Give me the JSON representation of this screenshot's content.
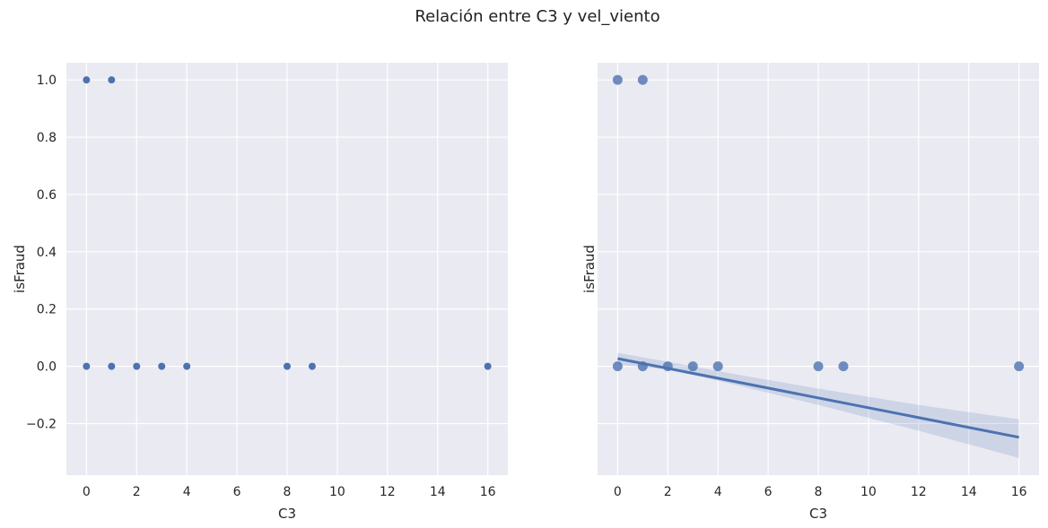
{
  "figure": {
    "title": "Relación entre C3 y vel_viento"
  },
  "colors": {
    "plot_bg": "#EAEAF2",
    "grid": "#FFFFFF",
    "point": "#4C72B0",
    "band": "#4C72B0"
  },
  "chart_data": [
    {
      "type": "scatter",
      "xlabel": "C3",
      "ylabel": "isFraud",
      "xlim": [
        -0.8,
        16.8
      ],
      "ylim": [
        -0.38,
        1.06
      ],
      "xticks": [
        0,
        2,
        4,
        6,
        8,
        10,
        12,
        14,
        16
      ],
      "yticks": [
        -0.2,
        0.0,
        0.2,
        0.4,
        0.6,
        0.8,
        1.0
      ],
      "ytick_labels": [
        "−0.2",
        "0.0",
        "0.2",
        "0.4",
        "0.6",
        "0.8",
        "1.0"
      ],
      "grid": true,
      "points": [
        {
          "x": 0,
          "y": 1
        },
        {
          "x": 1,
          "y": 1
        },
        {
          "x": 0,
          "y": 0
        },
        {
          "x": 1,
          "y": 0
        },
        {
          "x": 2,
          "y": 0
        },
        {
          "x": 3,
          "y": 0
        },
        {
          "x": 4,
          "y": 0
        },
        {
          "x": 8,
          "y": 0
        },
        {
          "x": 9,
          "y": 0
        },
        {
          "x": 16,
          "y": 0
        }
      ]
    },
    {
      "type": "scatter",
      "xlabel": "C3",
      "ylabel": "isFraud",
      "xlim": [
        -0.8,
        16.8
      ],
      "ylim": [
        -0.38,
        1.06
      ],
      "xticks": [
        0,
        2,
        4,
        6,
        8,
        10,
        12,
        14,
        16
      ],
      "yticks": [
        -0.2,
        0.0,
        0.2,
        0.4,
        0.6,
        0.8,
        1.0
      ],
      "grid": true,
      "points": [
        {
          "x": 0,
          "y": 1
        },
        {
          "x": 1,
          "y": 1
        },
        {
          "x": 0,
          "y": 0
        },
        {
          "x": 1,
          "y": 0
        },
        {
          "x": 2,
          "y": 0
        },
        {
          "x": 3,
          "y": 0
        },
        {
          "x": 4,
          "y": 0
        },
        {
          "x": 8,
          "y": 0
        },
        {
          "x": 9,
          "y": 0
        },
        {
          "x": 16,
          "y": 0
        }
      ],
      "regression": {
        "x": [
          0,
          16
        ],
        "y": [
          0.027,
          -0.248
        ],
        "ci": [
          {
            "x": 0,
            "lower": 0.005,
            "upper": 0.047
          },
          {
            "x": 2,
            "lower": -0.011,
            "upper": 0.016
          },
          {
            "x": 4,
            "lower": -0.05,
            "upper": -0.017
          },
          {
            "x": 8,
            "lower": -0.135,
            "upper": -0.078
          },
          {
            "x": 12,
            "lower": -0.225,
            "upper": -0.135
          },
          {
            "x": 16,
            "lower": -0.32,
            "upper": -0.185
          }
        ]
      }
    }
  ]
}
